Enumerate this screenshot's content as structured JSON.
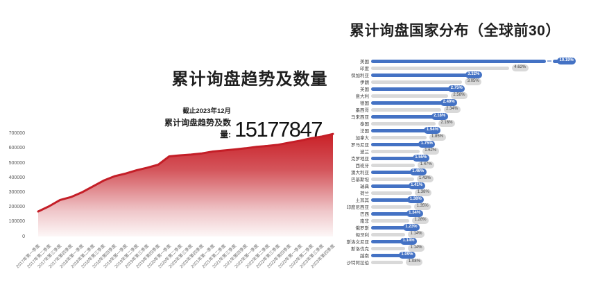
{
  "page": {
    "background": "#ffffff"
  },
  "left_chart": {
    "title": "累计询盘趋势及数量",
    "as_of_label": "截止2023年12月",
    "total_label": "累计询盘趋势及数量:",
    "total_value": "15177847"
  },
  "right_chart": {
    "title": "累计询盘国家分布（全球前30）"
  },
  "colors": {
    "area_red": "#c92027",
    "area_fade_to": "#ffffff",
    "bar_blue": "#4472c4",
    "bar_gray": "#d9d9d9",
    "badge_blue_text": "#ffffff",
    "badge_gray_text": "#404040",
    "axis_text": "#595959"
  },
  "chart_data": [
    {
      "type": "area",
      "title": "累计询盘趋势及数量",
      "xlabel": "",
      "ylabel": "",
      "ylim": [
        0,
        700000
      ],
      "yticks": [
        0,
        100000,
        200000,
        300000,
        400000,
        500000,
        600000,
        700000
      ],
      "grid": false,
      "legend": false,
      "x": [
        "2017年第一季度",
        "2017年第二季度",
        "2017年第三季度",
        "2017年第四季度",
        "2018年第一季度",
        "2018年第二季度",
        "2018年第三季度",
        "2018年第四季度",
        "2019年第一季度",
        "2019年第二季度",
        "2019年第三季度",
        "2019年第四季度",
        "2020年第一季度",
        "2020年第二季度",
        "2020年第三季度",
        "2020年第四季度",
        "2021年第一季度",
        "2021年第二季度",
        "2021年第三季度",
        "2021年第四季度",
        "2022年第一季度",
        "2022年第二季度",
        "2022年第三季度",
        "2022年第四季度",
        "2023年第一季度",
        "2023年第二季度",
        "2023年第三季度",
        "2023年第四季度"
      ],
      "values": [
        170000,
        205000,
        248000,
        268000,
        300000,
        340000,
        380000,
        410000,
        428000,
        450000,
        468000,
        488000,
        545000,
        552000,
        557000,
        565000,
        578000,
        585000,
        592000,
        600000,
        610000,
        616000,
        624000,
        638000,
        652000,
        668000,
        680000,
        697000
      ]
    },
    {
      "type": "bar",
      "orientation": "horizontal",
      "title": "累计询盘国家分布（全球前30）",
      "value_unit": "%",
      "axis_break_on_first_bar": true,
      "bar_color_pattern": "alternate-blue-gray",
      "categories": [
        "美国",
        "印度",
        "保加利亚",
        "伊朗",
        "英国",
        "意大利",
        "德国",
        "墨西哥",
        "马来西亚",
        "泰国",
        "法国",
        "加拿大",
        "罗马尼亚",
        "波兰",
        "克罗地亚",
        "西班牙",
        "澳大利亚",
        "巴基斯坦",
        "瑞典",
        "荷兰",
        "土耳其",
        "印度尼西亚",
        "巴西",
        "南非",
        "俄罗斯",
        "匈牙利",
        "斯洛文尼亚",
        "斯洛伐克",
        "越南",
        "沙特阿拉伯"
      ],
      "values": [
        10.19,
        4.62,
        3.32,
        3.05,
        2.75,
        2.58,
        2.49,
        2.34,
        2.18,
        2.16,
        1.94,
        1.85,
        1.75,
        1.62,
        1.55,
        1.47,
        1.46,
        1.43,
        1.41,
        1.38,
        1.38,
        1.35,
        1.34,
        1.28,
        1.23,
        1.14,
        1.14,
        1.14,
        1.09,
        1.08
      ],
      "labels": [
        "10.19%",
        "4.62%",
        "3.32%",
        "3.05%",
        "2.75%",
        "2.58%",
        "2.49%",
        "2.34%",
        "2.18%",
        "2.16%",
        "1.94%",
        "1.85%",
        "1.75%",
        "1.62%",
        "1.55%",
        "1.47%",
        "1.46%",
        "1.43%",
        "1.41%",
        "1.38%",
        "1.38%",
        "1.35%",
        "1.34%",
        "1.28%",
        "1.23%",
        "1.14%",
        "1.14%",
        "1.14%",
        "1.09%",
        "1.08%"
      ]
    }
  ]
}
